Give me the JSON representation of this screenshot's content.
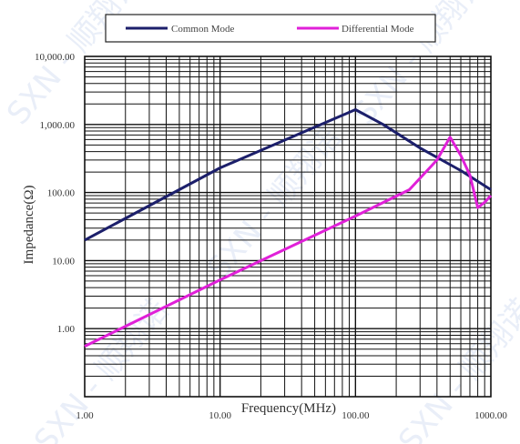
{
  "chart_data": {
    "type": "line",
    "xlabel": "Frequency(MHz)",
    "ylabel": "Impedance(Ω)",
    "x_scale": "log",
    "y_scale": "log",
    "xlim": [
      1,
      1000
    ],
    "ylim": [
      0.1,
      10000
    ],
    "x_tick_labels": [
      "1.00",
      "10.00",
      "100.00",
      "1000.00"
    ],
    "y_tick_labels": [
      "1.00",
      "10.00",
      "100.00",
      "1,000.00",
      "10,000.00"
    ],
    "grid": true,
    "legend_position": "top",
    "series": [
      {
        "name": "Common Mode",
        "color": "#1c1f6b",
        "points": [
          [
            1,
            20
          ],
          [
            10,
            230
          ],
          [
            100,
            1650
          ],
          [
            160,
            1000
          ],
          [
            300,
            450
          ],
          [
            600,
            210
          ],
          [
            1000,
            110
          ]
        ]
      },
      {
        "name": "Differential Mode",
        "color": "#e020d8",
        "points": [
          [
            1,
            0.55
          ],
          [
            10,
            5.2
          ],
          [
            100,
            45
          ],
          [
            250,
            110
          ],
          [
            400,
            300
          ],
          [
            500,
            650
          ],
          [
            600,
            350
          ],
          [
            700,
            180
          ],
          [
            800,
            60
          ],
          [
            900,
            72
          ],
          [
            1000,
            90
          ]
        ]
      }
    ]
  },
  "watermark": "SXN - 顺翔诺"
}
